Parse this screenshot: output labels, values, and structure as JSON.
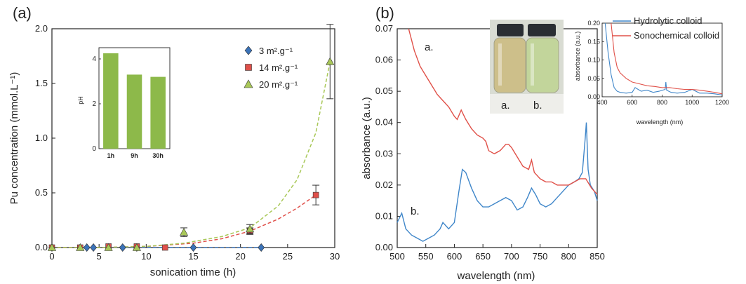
{
  "chart_data": [
    {
      "panel_label": "(a)",
      "type": "scatter",
      "xlabel": "sonication time (h)",
      "ylabel": "Pu concentration (mmol.L⁻¹)",
      "xlim": [
        0,
        30
      ],
      "ylim": [
        0,
        2.0
      ],
      "xticks": [
        0,
        5,
        10,
        15,
        20,
        25,
        30
      ],
      "yticks": [
        0.0,
        0.5,
        1.0,
        1.5,
        2.0
      ],
      "ytick_labels": [
        "0.0",
        "0.5",
        "1.0",
        "1.5",
        "2.0"
      ],
      "grid": false,
      "legend_position": "top-right",
      "series": [
        {
          "name": "3 m².g⁻¹",
          "marker": "diamond",
          "color": "#3b73b9",
          "x": [
            0,
            3.7,
            4.4,
            7.5,
            9.0,
            15.0,
            22.2
          ],
          "y": [
            0.0,
            0.0,
            0.0,
            0.0,
            0.0,
            0.0,
            0.0
          ],
          "err": [
            0,
            0,
            0,
            0,
            0,
            0,
            0
          ],
          "fit_x": [
            0,
            22
          ],
          "fit_y": [
            0.0,
            0.0
          ]
        },
        {
          "name": "14 m².g⁻¹",
          "marker": "square",
          "color": "#e0504a",
          "x": [
            0,
            3.0,
            6.0,
            9.0,
            12.0,
            21.0,
            28.0
          ],
          "y": [
            0.0,
            0.0,
            0.01,
            0.01,
            0.0,
            0.15,
            0.48
          ],
          "err": [
            0,
            0,
            0,
            0,
            0,
            0.03,
            0.09
          ],
          "fit_x": [
            0,
            5,
            10,
            15,
            18,
            21,
            24,
            26,
            28
          ],
          "fit_y": [
            0.0,
            0.0,
            0.01,
            0.04,
            0.08,
            0.15,
            0.26,
            0.36,
            0.48
          ]
        },
        {
          "name": "20 m².g⁻¹",
          "marker": "triangle",
          "color": "#a9c858",
          "x": [
            0,
            3.0,
            6.0,
            9.0,
            14.0,
            21.0,
            29.5
          ],
          "y": [
            0.0,
            0.0,
            0.0,
            0.0,
            0.14,
            0.17,
            1.7
          ],
          "err": [
            0,
            0,
            0,
            0,
            0.04,
            0.04,
            0.34
          ],
          "fit_x": [
            0,
            5,
            10,
            14,
            18,
            21,
            24,
            26,
            28,
            29.5
          ],
          "fit_y": [
            0.0,
            0.0,
            0.01,
            0.04,
            0.1,
            0.18,
            0.38,
            0.62,
            1.05,
            1.7
          ]
        }
      ],
      "inset": {
        "type": "bar",
        "ylabel": "pH",
        "categories": [
          "1h",
          "9h",
          "30h"
        ],
        "values": [
          4.25,
          3.3,
          3.2
        ],
        "ylim": [
          0,
          4.5
        ],
        "yticks": [
          0,
          2,
          4
        ],
        "color": "#8db94a"
      }
    },
    {
      "panel_label": "(b)",
      "type": "line",
      "xlabel": "wavelength (nm)",
      "ylabel": "absorbance (a.u.)",
      "xlim": [
        500,
        850
      ],
      "ylim": [
        0,
        0.07
      ],
      "xticks": [
        500,
        550,
        600,
        650,
        700,
        750,
        800,
        850
      ],
      "yticks": [
        0.0,
        0.01,
        0.02,
        0.03,
        0.04,
        0.05,
        0.06,
        0.07
      ],
      "ytick_labels": [
        "0.00",
        "0.01",
        "0.02",
        "0.03",
        "0.04",
        "0.05",
        "0.06",
        "0.07"
      ],
      "grid": false,
      "legend_position": "top-right",
      "annotations": [
        "a.",
        "b."
      ],
      "photo_labels": [
        "a.",
        "b."
      ],
      "series": [
        {
          "name": "Hydrolytic colloid",
          "color": "#3f86c9",
          "x": [
            500,
            508,
            515,
            525,
            535,
            545,
            555,
            565,
            575,
            580,
            590,
            600,
            608,
            614,
            620,
            630,
            640,
            650,
            660,
            670,
            680,
            690,
            700,
            710,
            720,
            728,
            735,
            742,
            750,
            760,
            770,
            780,
            790,
            800,
            810,
            818,
            824,
            829,
            831,
            834,
            838,
            845,
            850
          ],
          "y": [
            0.008,
            0.011,
            0.006,
            0.004,
            0.003,
            0.002,
            0.003,
            0.004,
            0.006,
            0.008,
            0.006,
            0.008,
            0.018,
            0.025,
            0.024,
            0.019,
            0.015,
            0.013,
            0.013,
            0.014,
            0.015,
            0.016,
            0.015,
            0.012,
            0.013,
            0.016,
            0.019,
            0.017,
            0.014,
            0.013,
            0.014,
            0.016,
            0.018,
            0.02,
            0.021,
            0.022,
            0.024,
            0.035,
            0.04,
            0.025,
            0.02,
            0.018,
            0.015
          ]
        },
        {
          "name": "Sonochemical colloid",
          "color": "#e05048",
          "x": [
            520,
            530,
            540,
            550,
            560,
            570,
            580,
            590,
            600,
            605,
            612,
            620,
            630,
            640,
            650,
            655,
            660,
            670,
            680,
            690,
            695,
            700,
            710,
            720,
            730,
            735,
            740,
            750,
            760,
            770,
            780,
            790,
            800,
            810,
            820,
            830,
            840,
            850
          ],
          "y": [
            0.07,
            0.063,
            0.058,
            0.055,
            0.052,
            0.049,
            0.047,
            0.045,
            0.042,
            0.041,
            0.044,
            0.041,
            0.038,
            0.036,
            0.035,
            0.034,
            0.031,
            0.03,
            0.031,
            0.033,
            0.033,
            0.032,
            0.029,
            0.026,
            0.025,
            0.028,
            0.024,
            0.022,
            0.021,
            0.021,
            0.02,
            0.02,
            0.02,
            0.021,
            0.022,
            0.022,
            0.019,
            0.017
          ]
        }
      ],
      "inset": {
        "type": "line",
        "xlabel": "wavelength (nm)",
        "ylabel": "absorbance (a.u.)",
        "xlim": [
          400,
          1200
        ],
        "ylim": [
          0,
          0.2
        ],
        "xticks": [
          400,
          600,
          800,
          1000,
          1200
        ],
        "yticks": [
          0.0,
          0.05,
          0.1,
          0.15,
          0.2
        ],
        "ytick_labels": [
          "0.00",
          "0.05",
          "0.10",
          "0.15",
          "0.20"
        ],
        "series": [
          {
            "name": "Hydrolytic colloid",
            "color": "#3f86c9",
            "x": [
              420,
              440,
              460,
              480,
              500,
              520,
              560,
              600,
              620,
              660,
              700,
              740,
              780,
              820,
              825,
              830,
              860,
              900,
              950,
              1000,
              1050,
              1100,
              1150,
              1200
            ],
            "y": [
              0.2,
              0.12,
              0.06,
              0.025,
              0.015,
              0.012,
              0.01,
              0.012,
              0.025,
              0.015,
              0.018,
              0.012,
              0.015,
              0.02,
              0.04,
              0.018,
              0.012,
              0.01,
              0.012,
              0.02,
              0.01,
              0.01,
              0.008,
              0.005
            ]
          },
          {
            "name": "Sonochemical colloid",
            "color": "#e05048",
            "x": [
              460,
              480,
              500,
              520,
              560,
              600,
              650,
              700,
              750,
              800,
              850,
              900,
              950,
              1000,
              1050,
              1100,
              1150,
              1200
            ],
            "y": [
              0.2,
              0.12,
              0.08,
              0.065,
              0.05,
              0.04,
              0.035,
              0.03,
              0.028,
              0.025,
              0.025,
              0.022,
              0.02,
              0.02,
              0.018,
              0.015,
              0.012,
              0.008
            ]
          }
        ]
      }
    }
  ]
}
